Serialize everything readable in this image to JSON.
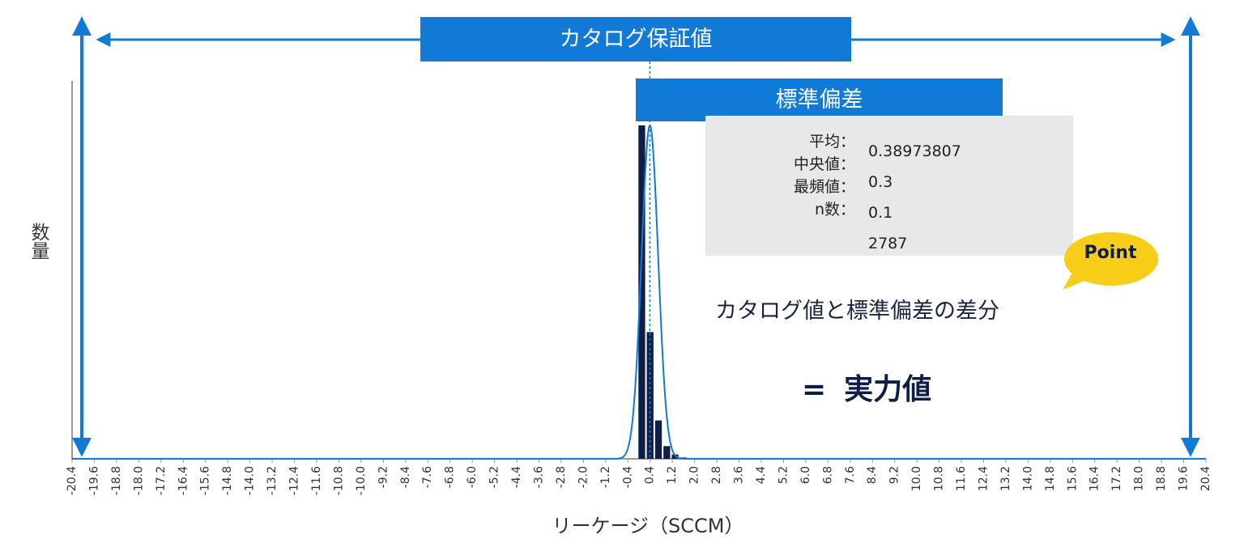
{
  "chart_data": {
    "type": "bar",
    "xlabel": "リーケージ（SCCM）",
    "ylabel": "数量",
    "xlim": [
      -20.4,
      20.4
    ],
    "x_tick_labels": [
      "-20.4",
      "-19.6",
      "-18.8",
      "-18.0",
      "-17.2",
      "-16.4",
      "-15.6",
      "-14.8",
      "-14.0",
      "-13.2",
      "-12.4",
      "-11.6",
      "-10.8",
      "-10.0",
      "-9.2",
      "-8.4",
      "-7.6",
      "-6.8",
      "-6.0",
      "-5.2",
      "-4.4",
      "-3.6",
      "-2.8",
      "-2.0",
      "-1.2",
      "-0.4",
      "0.4",
      "1.2",
      "2.0",
      "2.8",
      "3.6",
      "4.4",
      "5.2",
      "6.0",
      "6.8",
      "7.6",
      "8.4",
      "9.2",
      "10.0",
      "10.8",
      "11.6",
      "12.4",
      "13.2",
      "14.0",
      "14.8",
      "15.6",
      "16.4",
      "17.2",
      "18.0",
      "18.8",
      "19.6",
      "20.4"
    ],
    "histogram": {
      "bin_centers": [
        0.1,
        0.4,
        0.7,
        1.0,
        1.3,
        1.6
      ],
      "values": [
        1.0,
        0.38,
        0.115,
        0.038,
        0.013,
        0.004
      ]
    },
    "fit_curve": {
      "type": "normal",
      "mean": 0.39,
      "sd": 0.3
    },
    "mean_line_x": 0.39,
    "catalog_range": [
      -19.6,
      19.6
    ],
    "std_range": [
      0.39,
      13.2
    ]
  },
  "banners": {
    "catalog": "カタログ保証値",
    "std": "標準偏差"
  },
  "stats": {
    "labels": [
      "平均：",
      "中央値：",
      "最頻値：",
      "n数："
    ],
    "values": [
      "0.38973807",
      "0.3",
      "0.1",
      "2787"
    ]
  },
  "callout": {
    "point": "Point",
    "note": "カタログ値と標準偏差の差分",
    "result_eq": "=",
    "result": "実力値"
  },
  "colors": {
    "accent_blue": "#1179d6",
    "bar_navy": "#0f1e46",
    "point_yellow": "#f7cd17",
    "stats_gray": "#e8e8e8"
  }
}
